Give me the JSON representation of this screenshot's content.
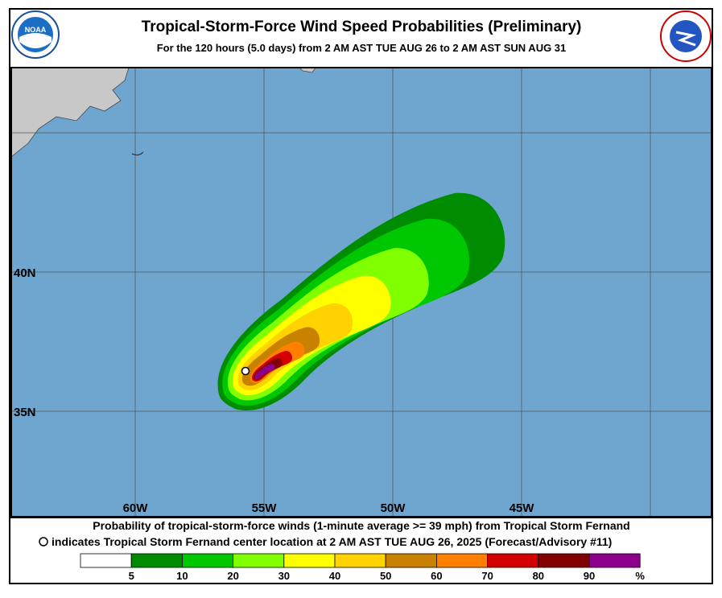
{
  "header": {
    "title": "Tropical-Storm-Force Wind Speed Probabilities (Preliminary)",
    "subtitle": "For the 120 hours (5.0 days) from 2 AM AST TUE AUG 26 to 2 AM AST SUN AUG 31",
    "logo_left": "NOAA"
  },
  "map": {
    "lon_labels": [
      "60W",
      "55W",
      "50W",
      "45W"
    ],
    "lat_labels": [
      "40N",
      "35N"
    ]
  },
  "footer": {
    "line1": "Probability of tropical-storm-force winds (1-minute average >= 39 mph) from Tropical Storm Fernand",
    "line2": "indicates Tropical Storm Fernand center location at 2 AM AST TUE AUG 26, 2025 (Forecast/Advisory #11)"
  },
  "legend": {
    "labels": [
      "5",
      "10",
      "20",
      "30",
      "40",
      "50",
      "60",
      "70",
      "80",
      "90",
      "%"
    ],
    "colors": [
      "#ffffff",
      "#008c00",
      "#00c800",
      "#80ff00",
      "#ffff00",
      "#ffd200",
      "#c88200",
      "#ff8000",
      "#d20000",
      "#820000",
      "#8c008c"
    ]
  }
}
